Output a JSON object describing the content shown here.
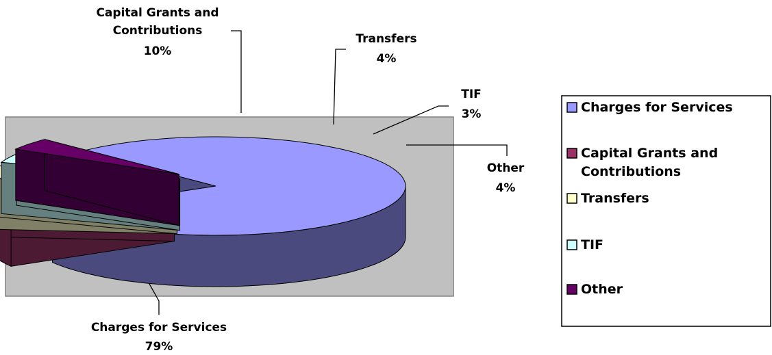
{
  "chart_data": {
    "type": "pie",
    "style": "3d-exploded",
    "slices": [
      {
        "label": "Charges for Services",
        "value": 79,
        "value_label": "79%",
        "color": "#9999ff",
        "side_color": "#4a4a7f"
      },
      {
        "label": "Capital Grants and Contributions",
        "label_lines": [
          "Capital Grants and",
          "Contributions"
        ],
        "value": 10,
        "value_label": "10%",
        "color": "#993366",
        "side_color": "#4d1a33"
      },
      {
        "label": "Transfers",
        "value": 4,
        "value_label": "4%",
        "color": "#ffffcc",
        "side_color": "#808066"
      },
      {
        "label": "TIF",
        "value": 3,
        "value_label": "3%",
        "color": "#ccffff",
        "side_color": "#668080"
      },
      {
        "label": "Other",
        "value": 4,
        "value_label": "4%",
        "color": "#660066",
        "side_color": "#330033"
      }
    ],
    "legend": {
      "position": "right",
      "items": [
        {
          "lines": [
            "Charges for Services"
          ],
          "color": "#9999ff"
        },
        {
          "lines": [
            "Capital Grants and",
            "Contributions"
          ],
          "color": "#993366"
        },
        {
          "lines": [
            "Transfers"
          ],
          "color": "#ffffcc"
        },
        {
          "lines": [
            "TIF"
          ],
          "color": "#ccffff"
        },
        {
          "lines": [
            "Other"
          ],
          "color": "#660066"
        }
      ]
    },
    "plot_area_color": "#c0c0c0"
  }
}
